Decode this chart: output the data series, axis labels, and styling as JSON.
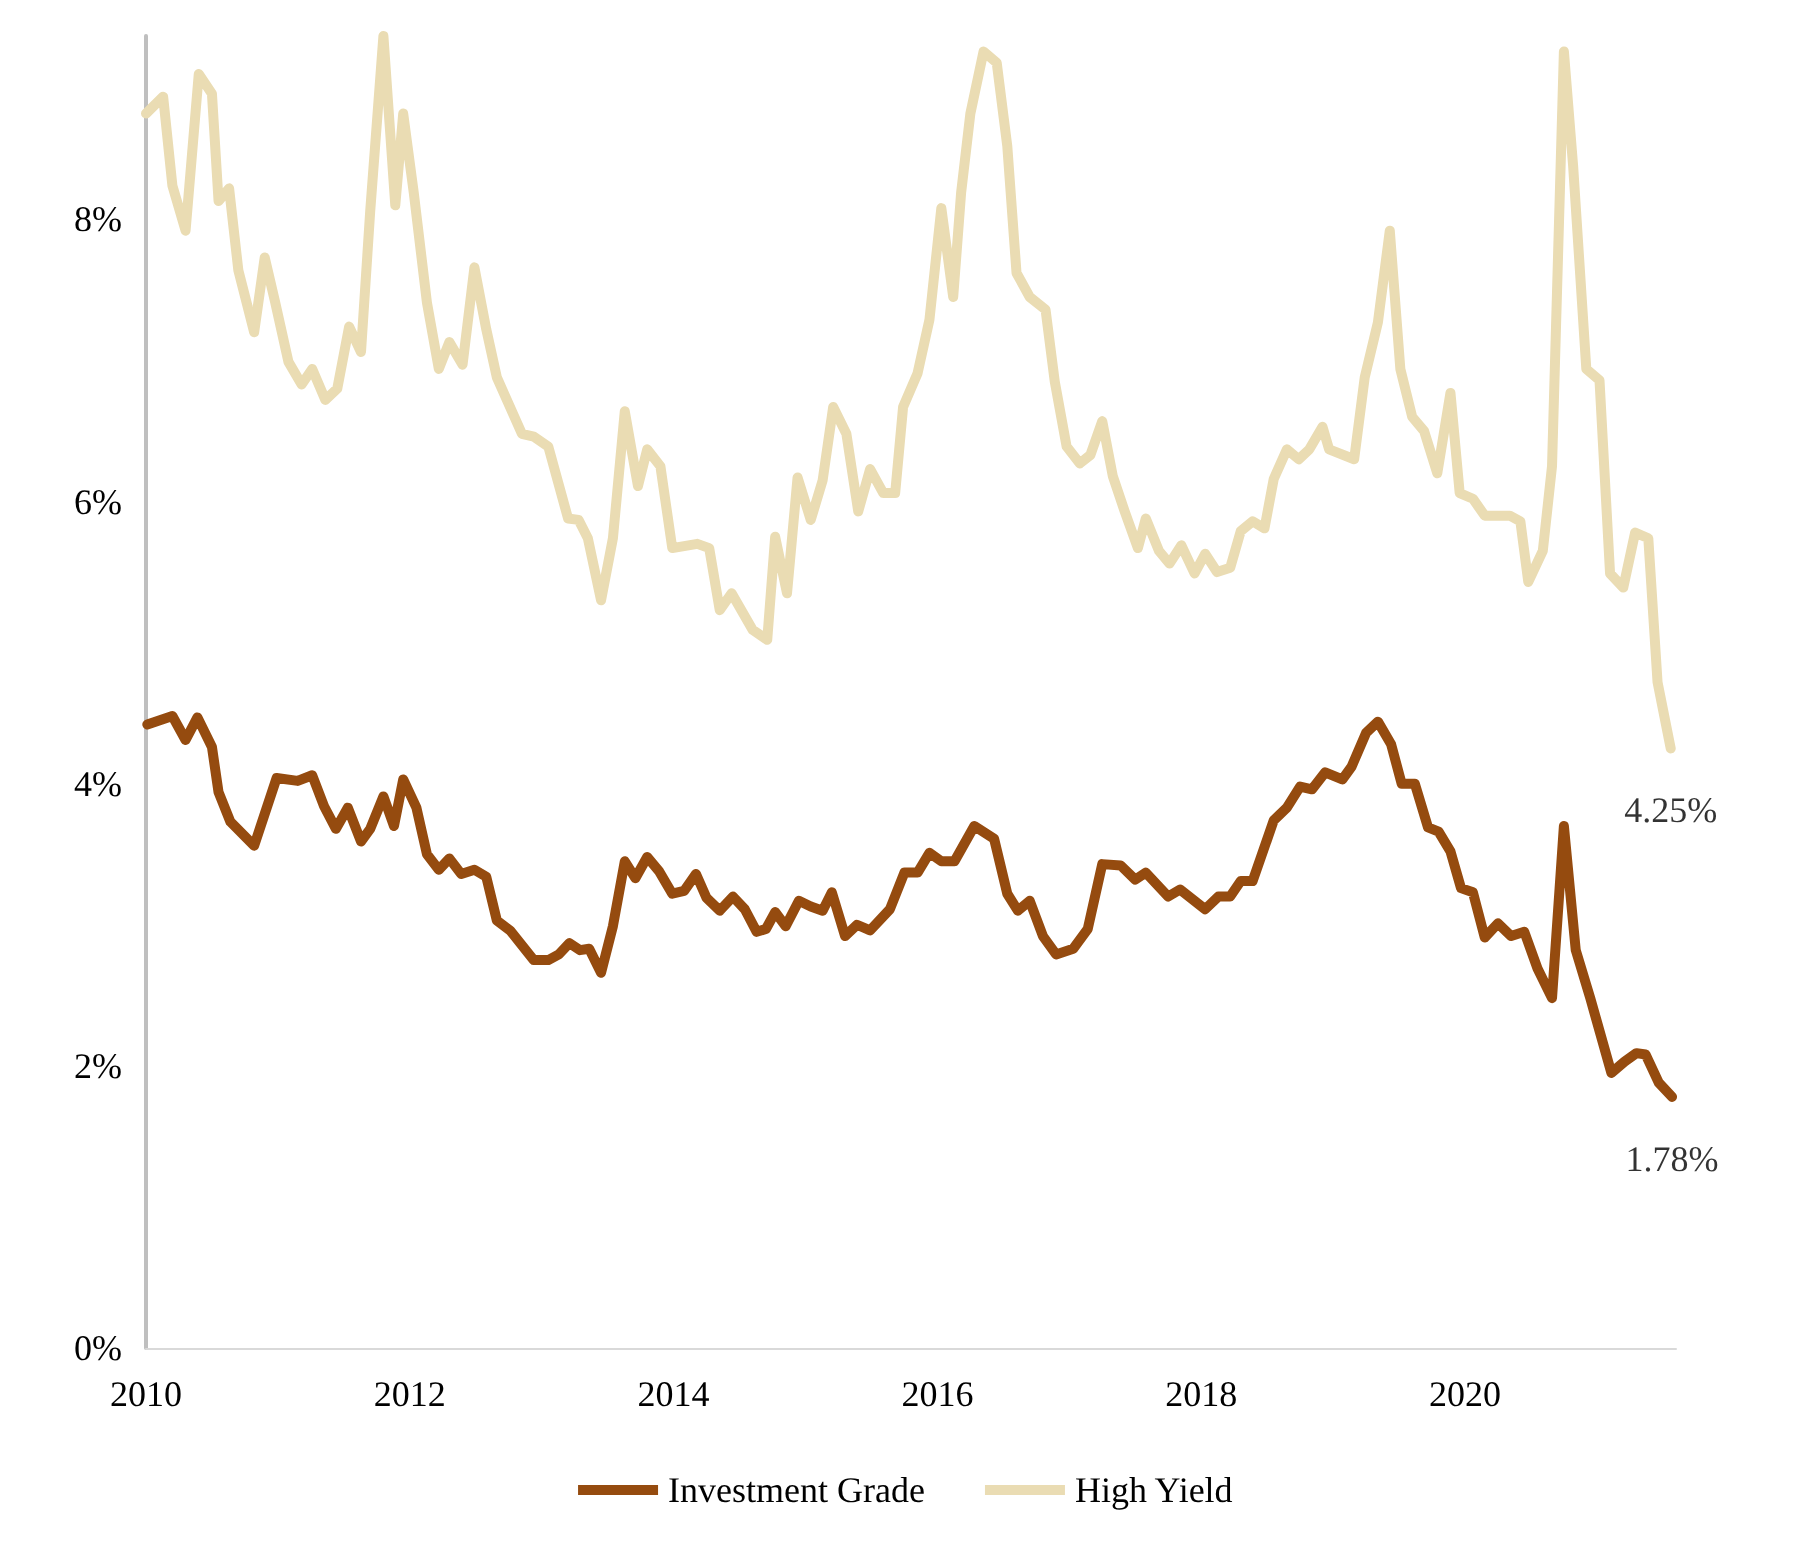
{
  "chart_data": {
    "type": "line",
    "xlim": [
      2010,
      2021.6
    ],
    "xticks": [
      2010,
      2012,
      2014,
      2016,
      2018,
      2020
    ],
    "ylim": [
      0,
      9.3
    ],
    "yticks": [
      {
        "value": 0,
        "label": "0%"
      },
      {
        "value": 2,
        "label": "2%"
      },
      {
        "value": 4,
        "label": "4%"
      },
      {
        "value": 6,
        "label": "6%"
      },
      {
        "value": 8,
        "label": "8%"
      }
    ],
    "grid": false,
    "legend": "bottom",
    "marker": "none",
    "line_style": "solid",
    "series": [
      {
        "name": "Investment Grade",
        "color": "#954b0f",
        "x": [
          2010.01,
          2010.2,
          2010.3,
          2010.39,
          2010.5,
          2010.55,
          2010.64,
          2010.82,
          2010.99,
          2011.15,
          2011.26,
          2011.35,
          2011.44,
          2011.53,
          2011.63,
          2011.7,
          2011.8,
          2011.88,
          2011.95,
          2012.05,
          2012.13,
          2012.22,
          2012.3,
          2012.39,
          2012.49,
          2012.58,
          2012.66,
          2012.76,
          2012.94,
          2013.05,
          2013.13,
          2013.21,
          2013.29,
          2013.36,
          2013.45,
          2013.54,
          2013.63,
          2013.71,
          2013.8,
          2013.89,
          2013.99,
          2014.08,
          2014.17,
          2014.25,
          2014.35,
          2014.45,
          2014.54,
          2014.63,
          2014.7,
          2014.77,
          2014.85,
          2014.95,
          2015.04,
          2015.13,
          2015.2,
          2015.3,
          2015.39,
          2015.49,
          2015.64,
          2015.75,
          2015.85,
          2015.94,
          2016.03,
          2016.13,
          2016.28,
          2016.43,
          2016.53,
          2016.61,
          2016.7,
          2016.8,
          2016.9,
          2017.03,
          2017.14,
          2017.25,
          2017.39,
          2017.5,
          2017.58,
          2017.75,
          2017.84,
          2018.03,
          2018.13,
          2018.22,
          2018.3,
          2018.39,
          2018.45,
          2018.55,
          2018.65,
          2018.75,
          2018.84,
          2018.94,
          2019.07,
          2019.14,
          2019.25,
          2019.34,
          2019.44,
          2019.52,
          2019.62,
          2019.72,
          2019.8,
          2019.89,
          2019.97,
          2020.06,
          2020.15,
          2020.25,
          2020.35,
          2020.45,
          2020.55,
          2020.66,
          2020.75,
          2020.84,
          2020.95,
          2021.11,
          2021.21,
          2021.3,
          2021.37,
          2021.47,
          2021.57
        ],
        "values": [
          4.42,
          4.48,
          4.31,
          4.47,
          4.26,
          3.94,
          3.73,
          3.56,
          4.04,
          4.02,
          4.06,
          3.84,
          3.68,
          3.83,
          3.59,
          3.68,
          3.91,
          3.7,
          4.03,
          3.83,
          3.5,
          3.39,
          3.47,
          3.36,
          3.39,
          3.34,
          3.03,
          2.96,
          2.75,
          2.75,
          2.79,
          2.87,
          2.82,
          2.83,
          2.66,
          2.99,
          3.45,
          3.33,
          3.48,
          3.38,
          3.22,
          3.24,
          3.36,
          3.19,
          3.1,
          3.2,
          3.11,
          2.95,
          2.97,
          3.09,
          2.99,
          3.17,
          3.13,
          3.1,
          3.23,
          2.92,
          3.0,
          2.96,
          3.11,
          3.37,
          3.37,
          3.51,
          3.45,
          3.45,
          3.7,
          3.61,
          3.22,
          3.1,
          3.17,
          2.92,
          2.79,
          2.83,
          2.97,
          3.43,
          3.42,
          3.32,
          3.37,
          3.2,
          3.25,
          3.11,
          3.2,
          3.2,
          3.31,
          3.31,
          3.47,
          3.74,
          3.83,
          3.98,
          3.96,
          4.08,
          4.03,
          4.12,
          4.36,
          4.44,
          4.28,
          4.0,
          4.0,
          3.69,
          3.66,
          3.52,
          3.26,
          3.23,
          2.91,
          3.01,
          2.92,
          2.95,
          2.69,
          2.48,
          3.7,
          2.82,
          2.48,
          1.95,
          2.03,
          2.09,
          2.08,
          1.88,
          1.78
        ]
      },
      {
        "name": "High Yield",
        "color": "#eadcb3",
        "x": [
          2010.0,
          2010.13,
          2010.2,
          2010.3,
          2010.4,
          2010.5,
          2010.55,
          2010.63,
          2010.7,
          2010.82,
          2010.9,
          2010.98,
          2011.08,
          2011.18,
          2011.26,
          2011.36,
          2011.45,
          2011.54,
          2011.63,
          2011.7,
          2011.8,
          2011.89,
          2011.95,
          2012.03,
          2012.13,
          2012.22,
          2012.3,
          2012.4,
          2012.49,
          2012.58,
          2012.66,
          2012.85,
          2012.94,
          2013.05,
          2013.2,
          2013.28,
          2013.35,
          2013.45,
          2013.54,
          2013.63,
          2013.73,
          2013.8,
          2013.9,
          2013.99,
          2014.18,
          2014.27,
          2014.35,
          2014.44,
          2014.6,
          2014.71,
          2014.77,
          2014.86,
          2014.94,
          2015.04,
          2015.13,
          2015.21,
          2015.31,
          2015.4,
          2015.49,
          2015.59,
          2015.68,
          2015.74,
          2015.85,
          2015.94,
          2016.03,
          2016.12,
          2016.18,
          2016.25,
          2016.35,
          2016.45,
          2016.53,
          2016.6,
          2016.7,
          2016.82,
          2016.89,
          2016.98,
          2017.08,
          2017.16,
          2017.25,
          2017.33,
          2017.42,
          2017.52,
          2017.58,
          2017.68,
          2017.76,
          2017.85,
          2017.95,
          2018.03,
          2018.12,
          2018.22,
          2018.3,
          2018.39,
          2018.48,
          2018.55,
          2018.65,
          2018.74,
          2018.82,
          2018.92,
          2018.97,
          2019.16,
          2019.24,
          2019.34,
          2019.43,
          2019.51,
          2019.6,
          2019.69,
          2019.79,
          2019.89,
          2019.96,
          2020.06,
          2020.15,
          2020.34,
          2020.42,
          2020.48,
          2020.59,
          2020.66,
          2020.75,
          2020.82,
          2020.92,
          2021.02,
          2021.1,
          2021.2,
          2021.29,
          2021.39,
          2021.46,
          2021.56
        ],
        "values": [
          8.75,
          8.87,
          8.24,
          7.92,
          9.03,
          8.89,
          8.13,
          8.22,
          7.64,
          7.2,
          7.73,
          7.41,
          6.99,
          6.83,
          6.94,
          6.72,
          6.8,
          7.24,
          7.06,
          8.06,
          9.3,
          8.1,
          8.75,
          8.19,
          7.41,
          6.94,
          7.13,
          6.97,
          7.66,
          7.22,
          6.88,
          6.48,
          6.46,
          6.39,
          5.88,
          5.87,
          5.74,
          5.3,
          5.74,
          6.64,
          6.11,
          6.37,
          6.25,
          5.67,
          5.7,
          5.67,
          5.23,
          5.35,
          5.09,
          5.02,
          5.75,
          5.35,
          6.17,
          5.87,
          6.15,
          6.67,
          6.48,
          5.93,
          6.23,
          6.06,
          6.06,
          6.67,
          6.91,
          7.29,
          8.08,
          7.45,
          8.19,
          8.75,
          9.19,
          9.11,
          8.52,
          7.62,
          7.45,
          7.36,
          6.85,
          6.39,
          6.27,
          6.33,
          6.57,
          6.18,
          5.93,
          5.67,
          5.88,
          5.65,
          5.56,
          5.69,
          5.49,
          5.63,
          5.5,
          5.53,
          5.79,
          5.86,
          5.81,
          6.16,
          6.37,
          6.3,
          6.37,
          6.53,
          6.37,
          6.3,
          6.88,
          7.27,
          7.92,
          6.94,
          6.6,
          6.5,
          6.2,
          6.77,
          6.06,
          6.02,
          5.9,
          5.9,
          5.86,
          5.43,
          5.65,
          6.25,
          9.19,
          8.38,
          6.94,
          6.86,
          5.49,
          5.39,
          5.78,
          5.74,
          4.72,
          4.25
        ]
      }
    ],
    "annotations": [
      {
        "text": "4.25%",
        "x": 2021.56,
        "y": 4.25
      },
      {
        "text": "1.78%",
        "x": 2021.57,
        "y": 1.78
      }
    ]
  }
}
